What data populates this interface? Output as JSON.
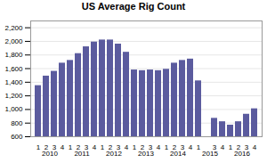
{
  "chart_data": {
    "type": "bar",
    "title": "US Average Rig Count",
    "categories": [
      "1",
      "2",
      "3",
      "4",
      "1",
      "2",
      "3",
      "4",
      "1",
      "2",
      "3",
      "4",
      "1",
      "2",
      "3",
      "4",
      "1",
      "2",
      "3",
      "4",
      "1",
      null,
      "3",
      "4",
      "1",
      "2",
      "3",
      "4"
    ],
    "values": [
      1350,
      1490,
      1560,
      1680,
      1720,
      1820,
      1920,
      1990,
      2020,
      2020,
      1960,
      1840,
      1580,
      1570,
      1580,
      1570,
      1590,
      1680,
      1720,
      1740,
      1420,
      null,
      870,
      820,
      770,
      820,
      930,
      1010
    ],
    "annotations": [
      "2010",
      "2011",
      "2012",
      "2013",
      "2014",
      "2015",
      "2016"
    ],
    "color": "#5b5b9e",
    "ylim": [
      600,
      2300
    ],
    "yticks": [
      600,
      800,
      {
        "value": 1000,
        "label": "1,000"
      },
      {
        "value": 1200,
        "label": "1,200"
      },
      {
        "value": 1400,
        "label": "1,400"
      },
      {
        "value": 1600,
        "label": "1,600"
      },
      {
        "value": 1800,
        "label": "1,800"
      },
      {
        "value": 2000,
        "label": "2,000"
      },
      {
        "value": 2200,
        "label": "2,200"
      }
    ],
    "grid": true
  }
}
